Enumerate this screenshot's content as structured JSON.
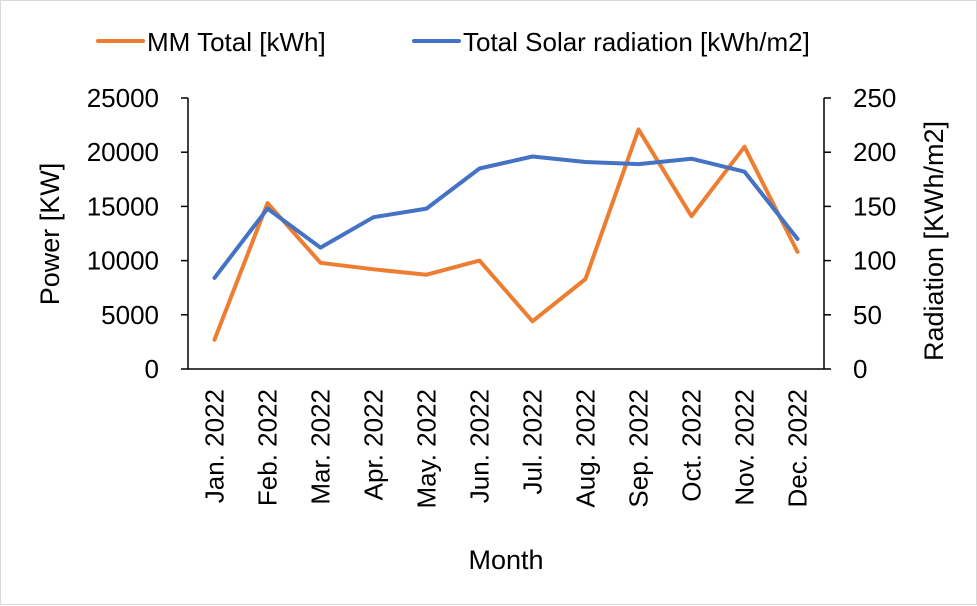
{
  "chart_data": {
    "type": "line",
    "xlabel": "Month",
    "ylabel": "Power [KW]",
    "y2label": "Radiation [KWh/m2]",
    "ylim": [
      0,
      25000
    ],
    "y2lim": [
      0,
      250
    ],
    "yticks": [
      "0",
      "5000",
      "10000",
      "15000",
      "20000",
      "25000"
    ],
    "y2ticks": [
      "0",
      "50",
      "100",
      "150",
      "200",
      "250"
    ],
    "grid": false,
    "legend_position": "top",
    "categories": [
      "Jan. 2022",
      "Feb. 2022",
      "Mar. 2022",
      "Apr. 2022",
      "May. 2022",
      "Jun. 2022",
      "Jul. 2022",
      "Aug. 2022",
      "Sep. 2022",
      "Oct. 2022",
      "Nov. 2022",
      "Dec. 2022"
    ],
    "series": [
      {
        "name": "MM Total [kWh]",
        "axis": "left",
        "color": "#ED7D31",
        "values": [
          2700,
          15300,
          9800,
          9200,
          8700,
          10000,
          4400,
          8300,
          22100,
          14100,
          20500,
          10800
        ]
      },
      {
        "name": "Total Solar radiation [kWh/m2]",
        "axis": "right",
        "color": "#4472C4",
        "values": [
          84,
          148,
          112,
          140,
          148,
          185,
          196,
          191,
          189,
          194,
          182,
          120
        ]
      }
    ]
  }
}
